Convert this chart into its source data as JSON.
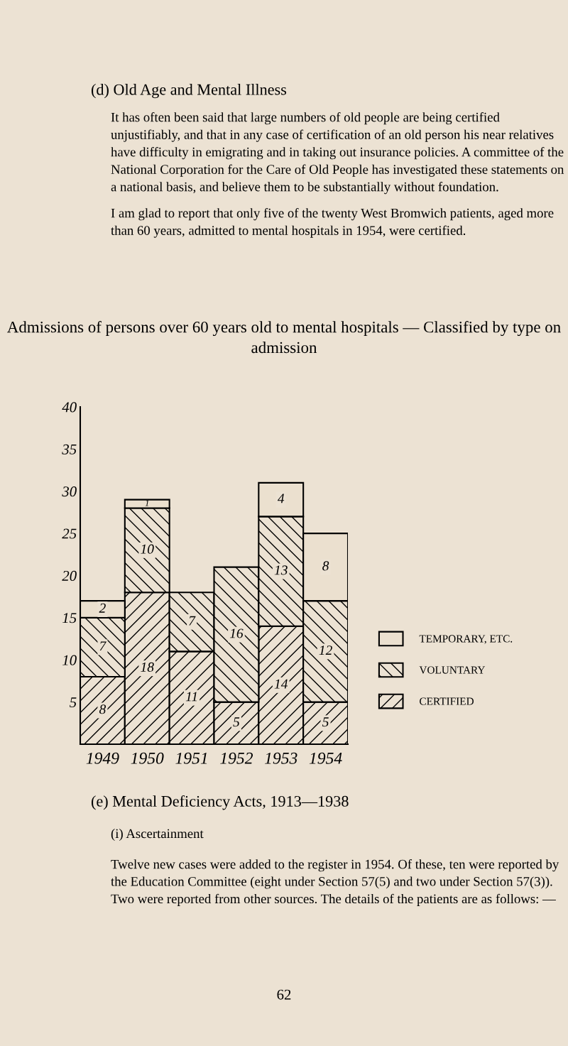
{
  "chart_data": {
    "type": "bar",
    "title": "Admissions of persons over 60 years old to mental hospitals — Classified by type on admission",
    "categories": [
      "1949",
      "1950",
      "1951",
      "1952",
      "1953",
      "1954"
    ],
    "stacked": true,
    "series": [
      {
        "name": "CERTIFIED",
        "color": "#000000",
        "values": [
          8,
          18,
          11,
          5,
          14,
          5
        ]
      },
      {
        "name": "VOLUNTARY",
        "color": "#000000",
        "values": [
          7,
          10,
          7,
          16,
          13,
          12
        ]
      },
      {
        "name": "TEMPORARY, ETC.",
        "color": "#ebe0cf",
        "values": [
          2,
          1,
          null,
          null,
          4,
          8
        ]
      }
    ],
    "ylim": [
      0,
      40
    ],
    "yticks": [
      5,
      10,
      15,
      20,
      25,
      30,
      35,
      40
    ],
    "data_labels": true,
    "legend": "right",
    "grid": false,
    "annotations": [
      "(d) Old Age and Mental Illness",
      "It has often been said that large numbers of old people are being certified unjustifiably, and that in any case of certification of an old person his near relatives have difficulty in emigrating and in taking out insurance policies. A committee of the National Corporation for the Care of Old People has investigated these statements on a national basis, and believe them to be substantially without foundation.",
      "I am glad to report that only five of the twenty West Bromwich patients, aged more than 60 years, admitted to mental hospitals in 1954, were certified.",
      "(e) Mental Deficiency Acts, 1913—1938",
      "(i) Ascertainment",
      "Twelve new cases were added to the register in 1954. Of these, ten were reported by the Education Committee (eight under Section 57(5) and two under Section 57(3)). Two were reported from other sources. The details of the patients are as follows: —",
      "62"
    ]
  }
}
